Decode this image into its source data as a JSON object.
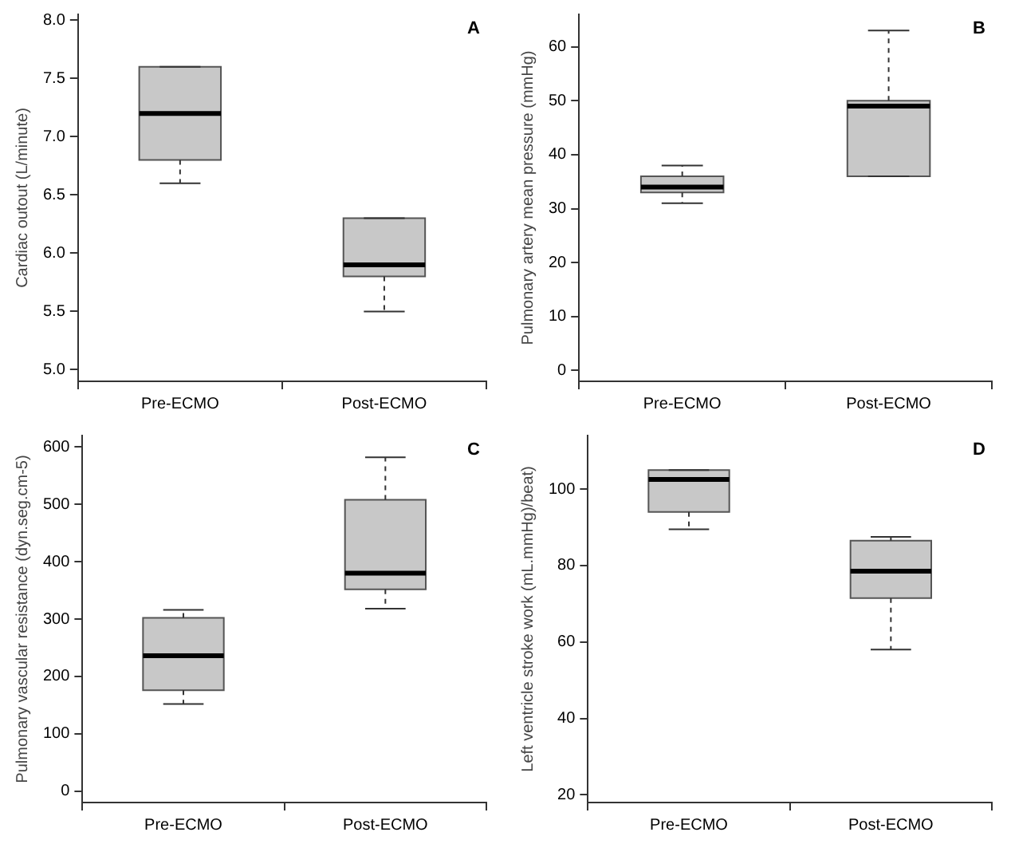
{
  "chart_data": [
    {
      "type": "box",
      "ylabel": "Cardiac outout (L/minute)",
      "categories": [
        "Pre-ECMO",
        "Post-ECMO"
      ],
      "series": [
        {
          "color": "#c8c8c8",
          "boxes": [
            {
              "low": 6.6,
              "q1": 6.8,
              "median": 7.2,
              "q3": 7.6,
              "high": 7.6
            },
            {
              "low": 5.5,
              "q1": 5.8,
              "median": 5.9,
              "q3": 6.3,
              "high": 6.3
            }
          ]
        }
      ],
      "ylim": [
        4.9,
        8.05
      ],
      "yticks": [
        {
          "value": 5,
          "label": "5.0"
        },
        {
          "value": 5.5,
          "label": "5.5"
        },
        {
          "value": 6,
          "label": "6.0"
        },
        {
          "value": 6.5,
          "label": "6.5"
        },
        {
          "value": 7,
          "label": "7.0"
        },
        {
          "value": 7.5,
          "label": "7.5"
        },
        {
          "value": 8,
          "label": "8.0"
        }
      ],
      "annotations": [
        "A"
      ]
    },
    {
      "type": "box",
      "ylabel": "Pulmonary artery mean pressure (mmHg)",
      "categories": [
        "Pre-ECMO",
        "Post-ECMO"
      ],
      "series": [
        {
          "color": "#c8c8c8",
          "boxes": [
            {
              "low": 31,
              "q1": 33,
              "median": 34,
              "q3": 36,
              "high": 38
            },
            {
              "low": 36,
              "q1": 36,
              "median": 49,
              "q3": 50,
              "high": 63
            }
          ]
        }
      ],
      "ylim": [
        -2,
        66
      ],
      "yticks": [
        0,
        10,
        20,
        30,
        40,
        50,
        60
      ],
      "annotations": [
        "B"
      ]
    },
    {
      "type": "box",
      "ylabel": "Pulmonary vascular resistance (dyn.seg.cm-5)",
      "categories": [
        "Pre-ECMO",
        "Post-ECMO"
      ],
      "series": [
        {
          "color": "#c8c8c8",
          "boxes": [
            {
              "low": 152,
              "q1": 176,
              "median": 236,
              "q3": 302,
              "high": 316
            },
            {
              "low": 318,
              "q1": 352,
              "median": 380,
              "q3": 508,
              "high": 582
            }
          ]
        }
      ],
      "ylim": [
        -20,
        620
      ],
      "yticks": [
        0,
        100,
        200,
        300,
        400,
        500,
        600
      ],
      "annotations": [
        "C"
      ]
    },
    {
      "type": "box",
      "ylabel": "Left ventricle stroke work (mL.mmHg)/beat)",
      "categories": [
        "Pre-ECMO",
        "Post-ECMO"
      ],
      "series": [
        {
          "color": "#c8c8c8",
          "boxes": [
            {
              "low": 89.5,
              "q1": 94,
              "median": 102.5,
              "q3": 105,
              "high": 105
            },
            {
              "low": 58,
              "q1": 71.5,
              "median": 78.5,
              "q3": 86.5,
              "high": 87.5
            }
          ]
        }
      ],
      "ylim": [
        18,
        114
      ],
      "yticks": [
        20,
        40,
        60,
        80,
        100
      ],
      "annotations": [
        "D"
      ]
    }
  ]
}
